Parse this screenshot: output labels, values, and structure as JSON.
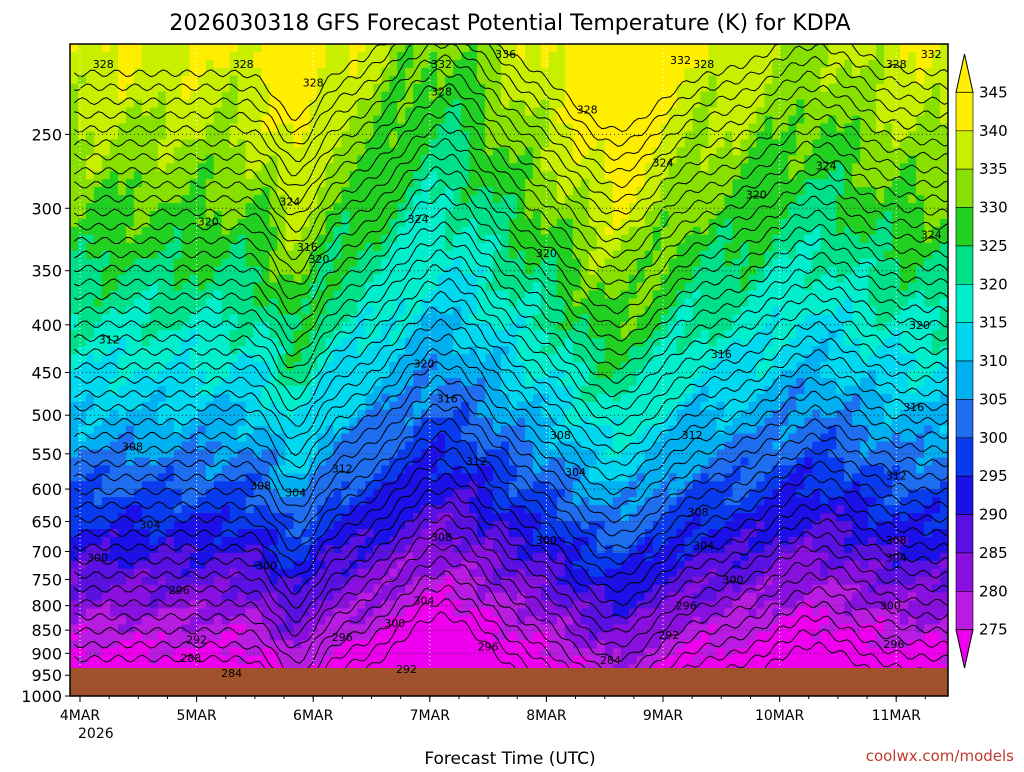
{
  "chart_data": {
    "type": "heatmap",
    "title": "2026030318 GFS Forecast Potential Temperature (K) for KDPA",
    "xlabel": "Forecast Time (UTC)",
    "ylabel": "",
    "x_ticks": [
      "4MAR",
      "5MAR",
      "6MAR",
      "7MAR",
      "8MAR",
      "9MAR",
      "10MAR",
      "11MAR"
    ],
    "x_year": "2026",
    "y_ticks": [
      "250",
      "300",
      "350",
      "400",
      "450",
      "500",
      "550",
      "600",
      "650",
      "700",
      "750",
      "800",
      "850",
      "900",
      "950",
      "1000"
    ],
    "y_values_hpa": [
      250,
      300,
      350,
      400,
      450,
      500,
      550,
      600,
      650,
      700,
      750,
      800,
      850,
      900,
      950,
      1000
    ],
    "y_top_hpa": 200,
    "y_bottom_hpa": 1000,
    "scale": "log-pressure",
    "colorbar": {
      "levels": [
        "345",
        "340",
        "335",
        "330",
        "325",
        "320",
        "315",
        "310",
        "305",
        "300",
        "295",
        "290",
        "285",
        "280",
        "275"
      ],
      "colors": [
        "#ffee00",
        "#c8ee00",
        "#88e000",
        "#22d022",
        "#00e088",
        "#00eecc",
        "#00d8f0",
        "#00b0f0",
        "#1f6ef0",
        "#0a3aee",
        "#1c10e8",
        "#5a10e0",
        "#8a10e0",
        "#b81ce0",
        "#ee00ee"
      ]
    },
    "contour_labels": [
      {
        "text": "328",
        "day": 0.2,
        "hpa": 210
      },
      {
        "text": "328",
        "day": 1.4,
        "hpa": 210
      },
      {
        "text": "328",
        "day": 2.0,
        "hpa": 220
      },
      {
        "text": "336",
        "day": 3.65,
        "hpa": 205
      },
      {
        "text": "332",
        "day": 3.1,
        "hpa": 210
      },
      {
        "text": "328",
        "day": 3.1,
        "hpa": 225
      },
      {
        "text": "328",
        "day": 4.35,
        "hpa": 235
      },
      {
        "text": "332",
        "day": 5.15,
        "hpa": 208
      },
      {
        "text": "328",
        "day": 5.35,
        "hpa": 210
      },
      {
        "text": "328",
        "day": 7.0,
        "hpa": 210
      },
      {
        "text": "332",
        "day": 7.3,
        "hpa": 205
      },
      {
        "text": "324",
        "day": 5.0,
        "hpa": 268
      },
      {
        "text": "324",
        "day": 6.4,
        "hpa": 270
      },
      {
        "text": "324",
        "day": 1.8,
        "hpa": 295
      },
      {
        "text": "320",
        "day": 5.8,
        "hpa": 290
      },
      {
        "text": "324",
        "day": 2.9,
        "hpa": 308
      },
      {
        "text": "320",
        "day": 1.1,
        "hpa": 310
      },
      {
        "text": "324",
        "day": 7.3,
        "hpa": 320
      },
      {
        "text": "316",
        "day": 1.95,
        "hpa": 330
      },
      {
        "text": "320",
        "day": 2.05,
        "hpa": 340
      },
      {
        "text": "320",
        "day": 4.0,
        "hpa": 335
      },
      {
        "text": "312",
        "day": 0.25,
        "hpa": 415
      },
      {
        "text": "320",
        "day": 7.2,
        "hpa": 400
      },
      {
        "text": "316",
        "day": 5.5,
        "hpa": 430
      },
      {
        "text": "320",
        "day": 2.95,
        "hpa": 440
      },
      {
        "text": "316",
        "day": 3.15,
        "hpa": 480
      },
      {
        "text": "316",
        "day": 7.15,
        "hpa": 490
      },
      {
        "text": "308",
        "day": 0.45,
        "hpa": 540
      },
      {
        "text": "312",
        "day": 5.25,
        "hpa": 525
      },
      {
        "text": "308",
        "day": 4.12,
        "hpa": 525
      },
      {
        "text": "312",
        "day": 2.25,
        "hpa": 570
      },
      {
        "text": "312",
        "day": 3.4,
        "hpa": 560
      },
      {
        "text": "304",
        "day": 4.25,
        "hpa": 575
      },
      {
        "text": "308",
        "day": 1.55,
        "hpa": 595
      },
      {
        "text": "304",
        "day": 1.85,
        "hpa": 605
      },
      {
        "text": "312",
        "day": 7.0,
        "hpa": 580
      },
      {
        "text": "308",
        "day": 5.3,
        "hpa": 635
      },
      {
        "text": "304",
        "day": 0.6,
        "hpa": 655
      },
      {
        "text": "304",
        "day": 5.35,
        "hpa": 690
      },
      {
        "text": "308",
        "day": 3.1,
        "hpa": 675
      },
      {
        "text": "300",
        "day": 4.0,
        "hpa": 680
      },
      {
        "text": "308",
        "day": 7.0,
        "hpa": 680
      },
      {
        "text": "300",
        "day": 0.15,
        "hpa": 710
      },
      {
        "text": "304",
        "day": 7.0,
        "hpa": 710
      },
      {
        "text": "300",
        "day": 1.6,
        "hpa": 725
      },
      {
        "text": "300",
        "day": 5.6,
        "hpa": 750
      },
      {
        "text": "296",
        "day": 0.85,
        "hpa": 770
      },
      {
        "text": "304",
        "day": 2.95,
        "hpa": 790
      },
      {
        "text": "296",
        "day": 5.2,
        "hpa": 800
      },
      {
        "text": "300",
        "day": 6.95,
        "hpa": 800
      },
      {
        "text": "300",
        "day": 2.7,
        "hpa": 835
      },
      {
        "text": "292",
        "day": 5.05,
        "hpa": 860
      },
      {
        "text": "292",
        "day": 1.0,
        "hpa": 870
      },
      {
        "text": "296",
        "day": 2.25,
        "hpa": 865
      },
      {
        "text": "296",
        "day": 3.5,
        "hpa": 885
      },
      {
        "text": "296",
        "day": 6.98,
        "hpa": 880
      },
      {
        "text": "288",
        "day": 0.95,
        "hpa": 910
      },
      {
        "text": "284",
        "day": 4.55,
        "hpa": 915
      },
      {
        "text": "292",
        "day": 2.8,
        "hpa": 935
      },
      {
        "text": "284",
        "day": 1.3,
        "hpa": 945
      }
    ]
  },
  "credit": "coolwx.com/models"
}
